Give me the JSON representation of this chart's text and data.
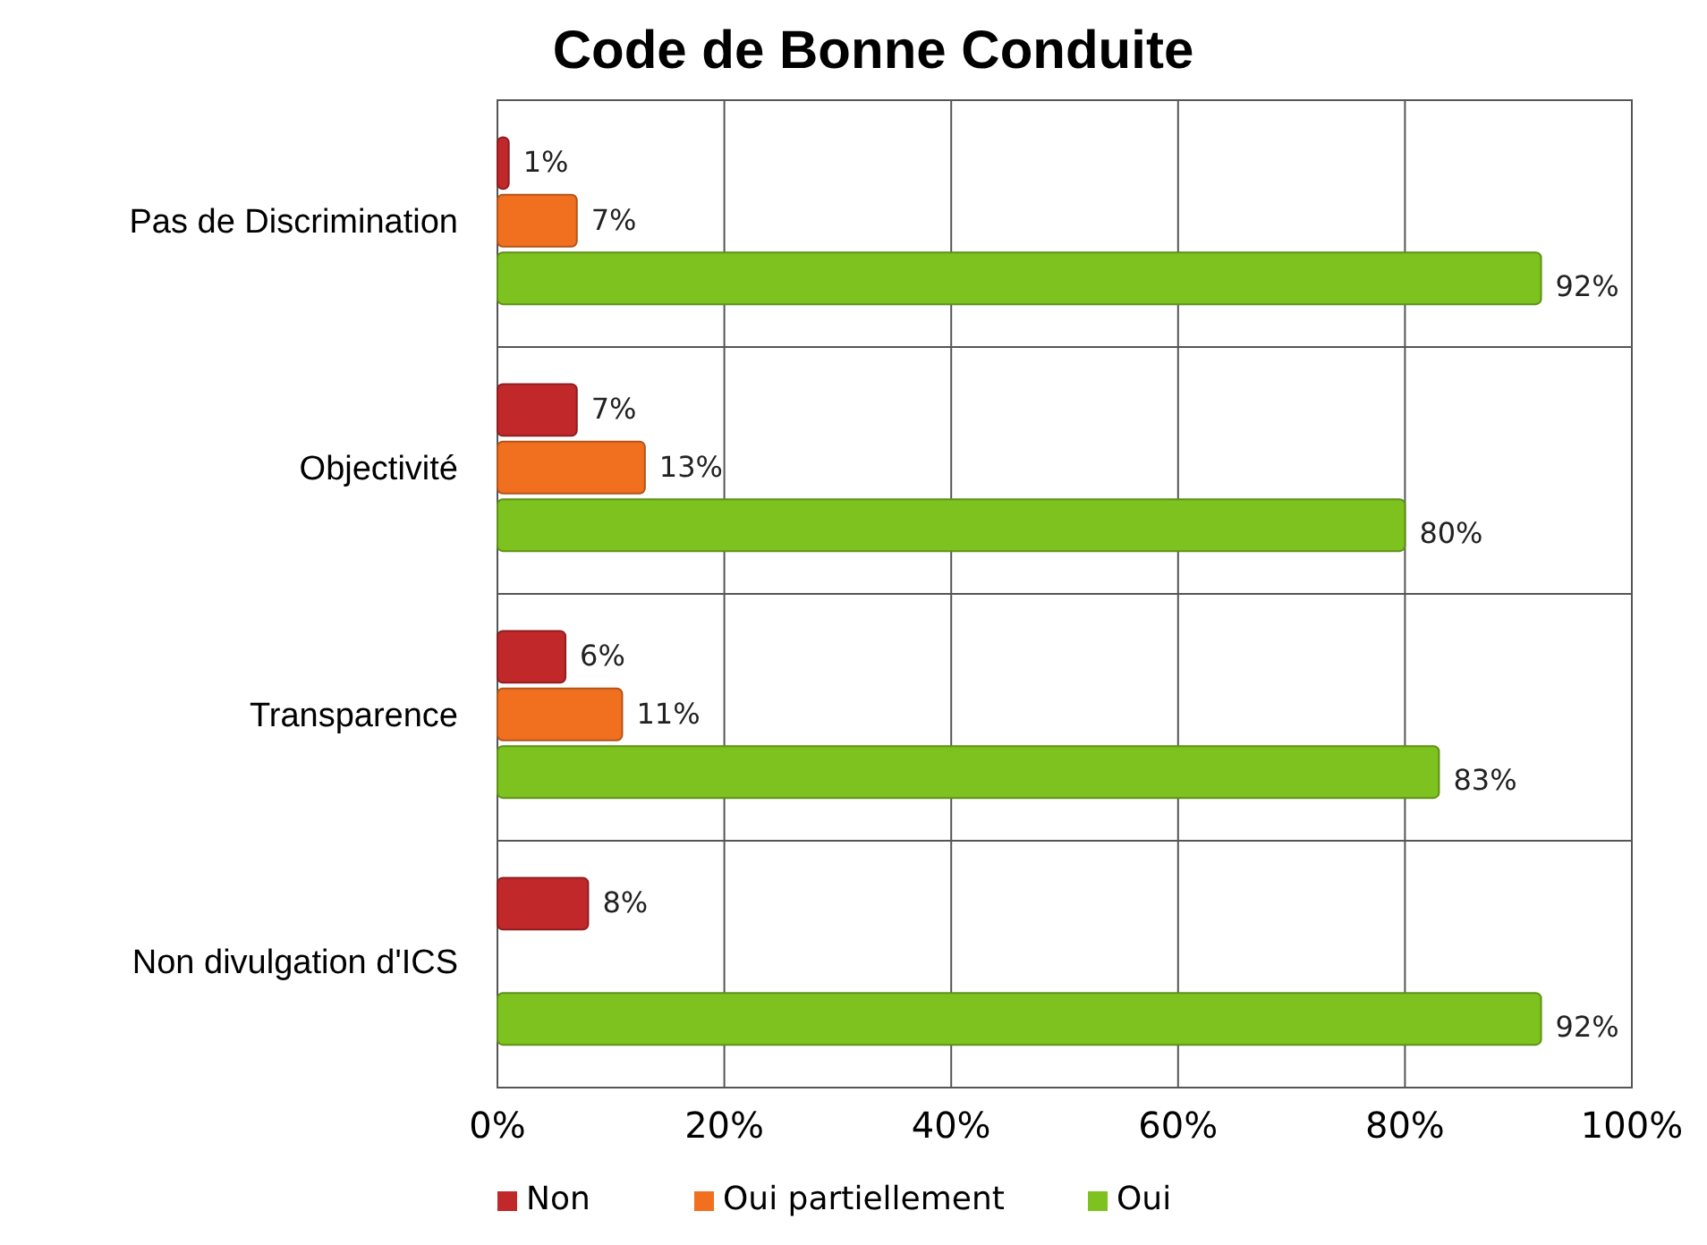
{
  "chart_data": {
    "type": "bar",
    "orientation": "horizontal",
    "title": "Code de Bonne Conduite",
    "categories": [
      "Pas de Discrimination",
      "Objectivité",
      "Transparence",
      "Non divulgation d'ICS"
    ],
    "series": [
      {
        "name": "Non",
        "color": "#c0282a",
        "values": [
          1,
          7,
          6,
          8
        ],
        "value_labels": [
          "1%",
          "7%",
          "6%",
          "8%"
        ]
      },
      {
        "name": "Oui partiellement",
        "color": "#f07020",
        "values": [
          7,
          13,
          11,
          null
        ],
        "value_labels": [
          "7%",
          "13%",
          "11%",
          null
        ]
      },
      {
        "name": "Oui",
        "color": "#7dc21e",
        "values": [
          92,
          80,
          83,
          92
        ],
        "value_labels": [
          "92%",
          "80%",
          "83%",
          "92%"
        ]
      }
    ],
    "xlim": [
      0,
      100
    ],
    "xticks": [
      {
        "value": 0,
        "label": "0%"
      },
      {
        "value": 20,
        "label": "20%"
      },
      {
        "value": 40,
        "label": "40%"
      },
      {
        "value": 60,
        "label": "60%"
      },
      {
        "value": 80,
        "label": "80%"
      },
      {
        "value": 100,
        "label": "100%"
      }
    ],
    "grid": true,
    "legend": "bottom"
  }
}
